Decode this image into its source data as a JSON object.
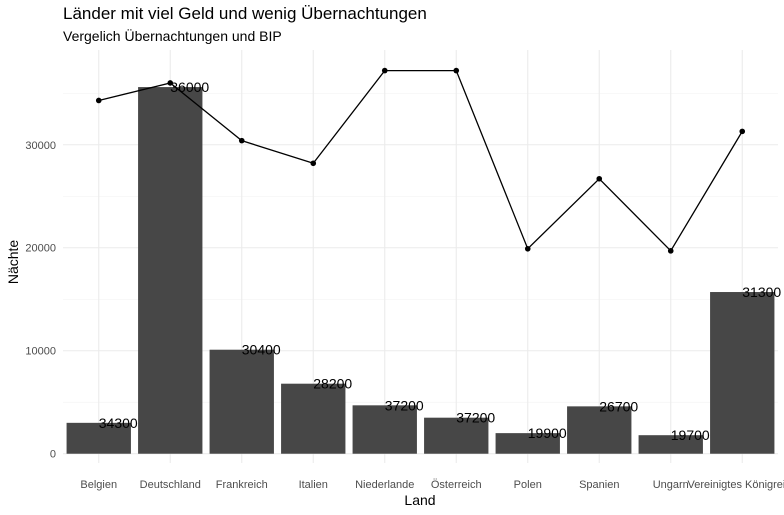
{
  "chart_data": {
    "type": "bar",
    "title": "Länder mit viel Geld und wenig Übernachtungen",
    "subtitle": "Vergelich Übernachtungen und BIP",
    "xlabel": "Land",
    "ylabel": "Nächte",
    "categories": [
      "Belgien",
      "Deutschland",
      "Frankreich",
      "Italien",
      "Niederlande",
      "Österreich",
      "Polen",
      "Spanien",
      "Ungarn",
      "Vereinigtes Königreich"
    ],
    "series": [
      {
        "type": "bar",
        "values": [
          3000,
          35600,
          10100,
          6800,
          4700,
          3500,
          2000,
          4600,
          1800,
          15700
        ],
        "color": "#474747"
      },
      {
        "type": "line",
        "values": [
          34300,
          36000,
          30400,
          28200,
          37200,
          37200,
          19900,
          26700,
          19700,
          31300
        ],
        "color": "#000000"
      }
    ],
    "data_labels": [
      "34300",
      "36000",
      "30400",
      "28200",
      "37200",
      "37200",
      "19900",
      "26700",
      "19700",
      "31300"
    ],
    "y_ticks": [
      0,
      10000,
      20000,
      30000
    ],
    "y_tick_labels": [
      "0",
      "10000",
      "20000",
      "30000"
    ],
    "ylim": [
      -900,
      39200
    ],
    "grid": true,
    "legend": "none"
  }
}
